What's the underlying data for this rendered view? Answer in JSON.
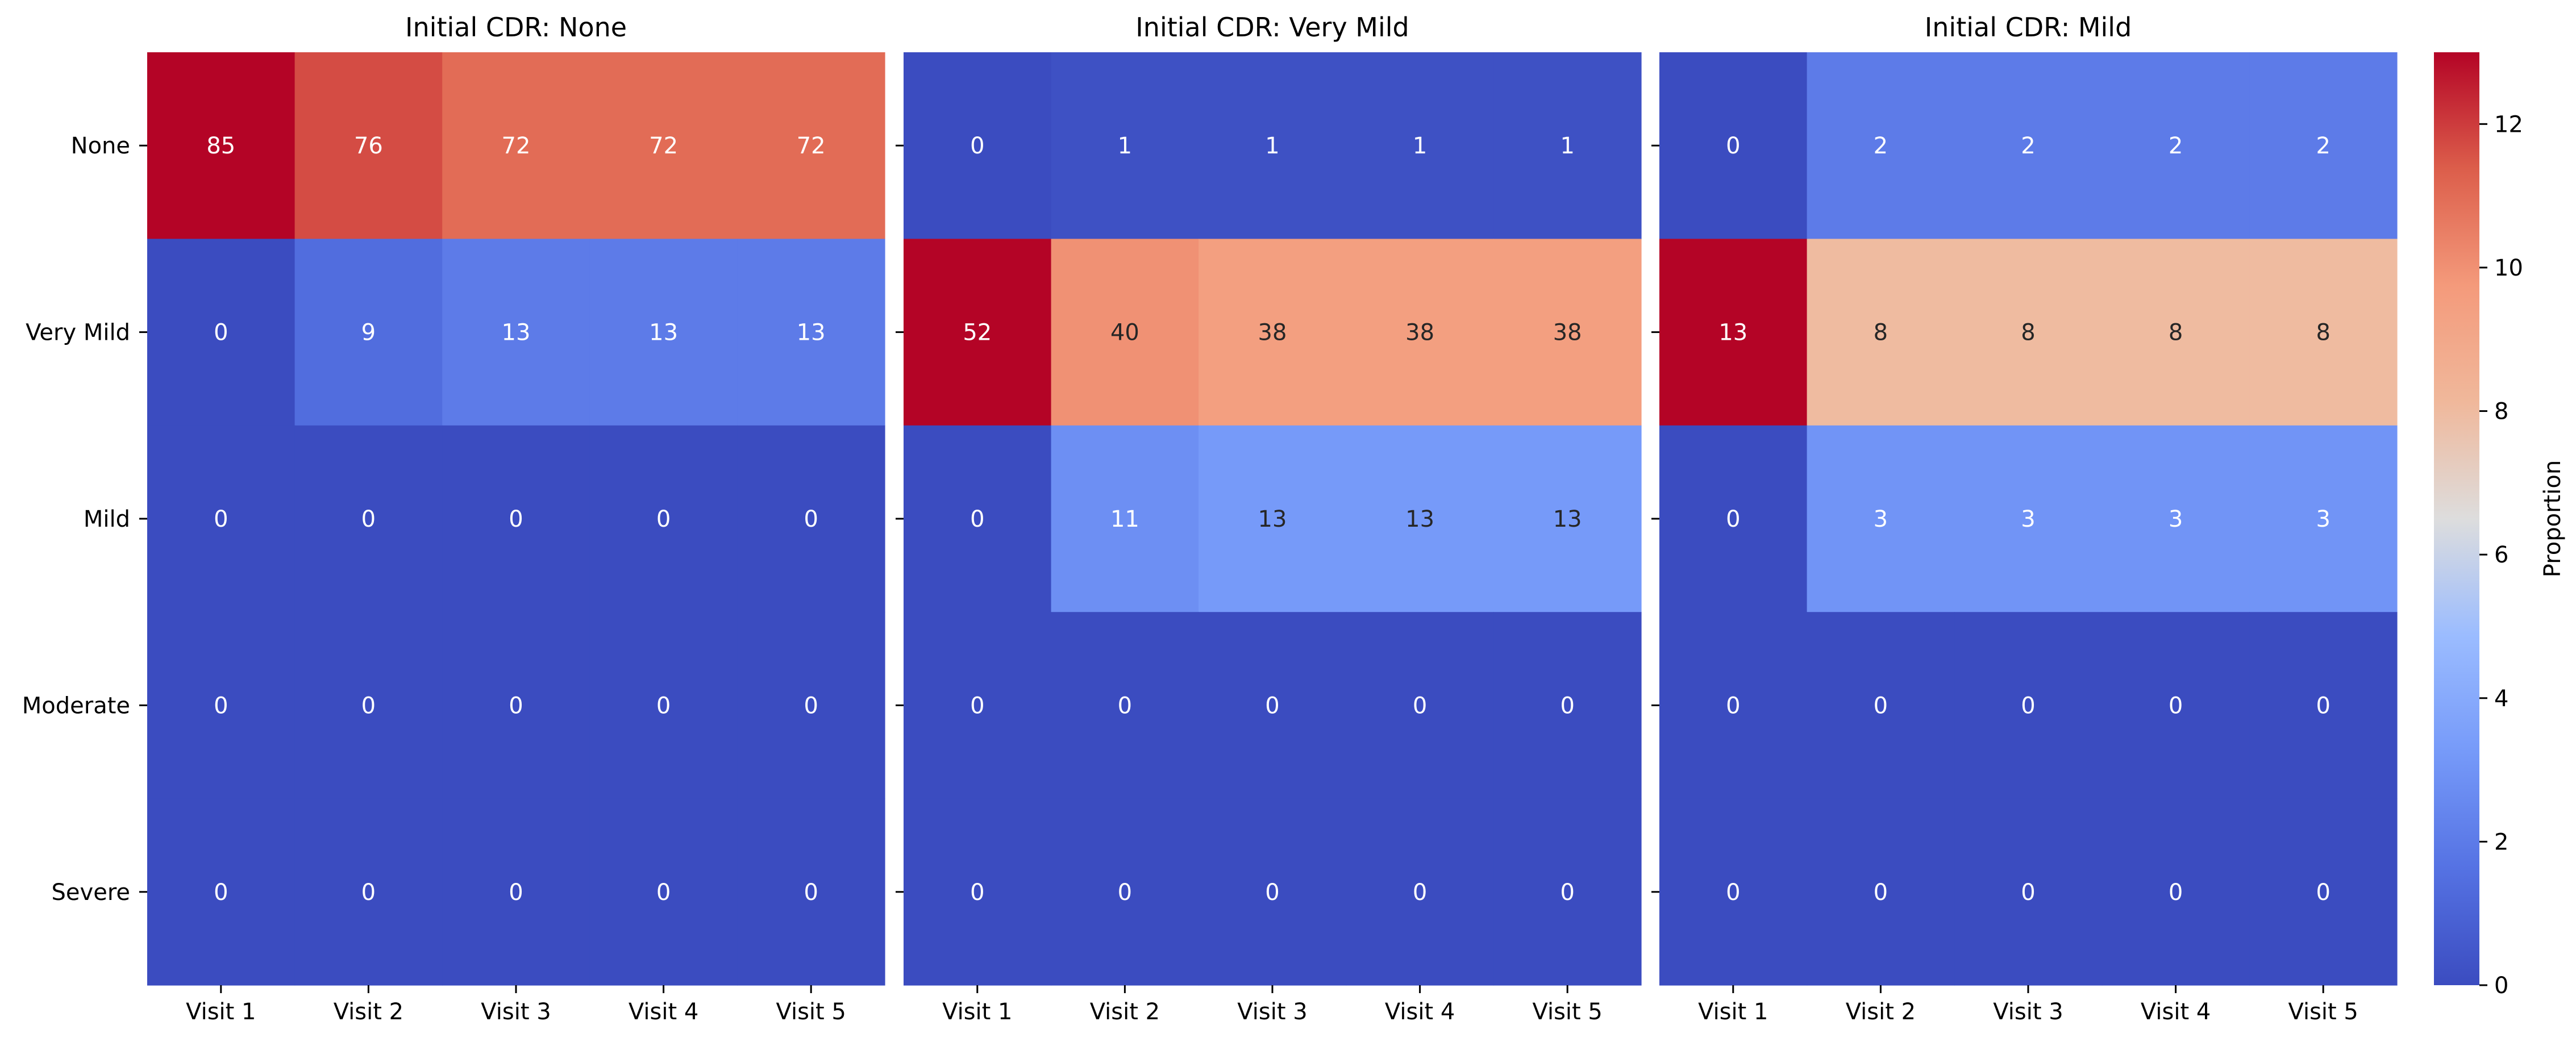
{
  "chart_data": {
    "type": "heatmap",
    "colormap": "coolwarm",
    "color_scale": {
      "min": 0,
      "max": 13
    },
    "row_labels": [
      "None",
      "Very Mild",
      "Mild",
      "Moderate",
      "Severe"
    ],
    "col_labels": [
      "Visit 1",
      "Visit 2",
      "Visit 3",
      "Visit 4",
      "Visit 5"
    ],
    "panels": [
      {
        "title": "Initial CDR: None",
        "color_values": [
          [
            13,
            11.7,
            11,
            11,
            11
          ],
          [
            0,
            1.4,
            2,
            2,
            2
          ],
          [
            0,
            0,
            0,
            0,
            0
          ],
          [
            0,
            0,
            0,
            0,
            0
          ],
          [
            0,
            0,
            0,
            0,
            0
          ]
        ],
        "annotations": [
          [
            "85",
            "76",
            "72",
            "72",
            "72"
          ],
          [
            "0",
            "9",
            "13",
            "13",
            "13"
          ],
          [
            "0",
            "0",
            "0",
            "0",
            "0"
          ],
          [
            "0",
            "0",
            "0",
            "0",
            "0"
          ],
          [
            "0",
            "0",
            "0",
            "0",
            "0"
          ]
        ]
      },
      {
        "title": "Initial CDR: Very Mild",
        "color_values": [
          [
            0,
            0.2,
            0.2,
            0.2,
            0.2
          ],
          [
            13,
            10,
            9.5,
            9.5,
            9.5
          ],
          [
            0,
            2.8,
            3.25,
            3.25,
            3.25
          ],
          [
            0,
            0,
            0,
            0,
            0
          ],
          [
            0,
            0,
            0,
            0,
            0
          ]
        ],
        "annotations": [
          [
            "0",
            "1",
            "1",
            "1",
            "1"
          ],
          [
            "52",
            "40",
            "38",
            "38",
            "38"
          ],
          [
            "0",
            "11",
            "13",
            "13",
            "13"
          ],
          [
            "0",
            "0",
            "0",
            "0",
            "0"
          ],
          [
            "0",
            "0",
            "0",
            "0",
            "0"
          ]
        ]
      },
      {
        "title": "Initial CDR: Mild",
        "color_values": [
          [
            0,
            2,
            2,
            2,
            2
          ],
          [
            13,
            8,
            8,
            8,
            8
          ],
          [
            0,
            3,
            3,
            3,
            3
          ],
          [
            0,
            0,
            0,
            0,
            0
          ],
          [
            0,
            0,
            0,
            0,
            0
          ]
        ],
        "annotations": [
          [
            "0",
            "2",
            "2",
            "2",
            "2"
          ],
          [
            "13",
            "8",
            "8",
            "8",
            "8"
          ],
          [
            "0",
            "3",
            "3",
            "3",
            "3"
          ],
          [
            "0",
            "0",
            "0",
            "0",
            "0"
          ],
          [
            "0",
            "0",
            "0",
            "0",
            "0"
          ]
        ]
      }
    ],
    "colorbar": {
      "label": "Proportion",
      "ticks": [
        "0",
        "2",
        "4",
        "6",
        "8",
        "10",
        "12"
      ]
    }
  }
}
